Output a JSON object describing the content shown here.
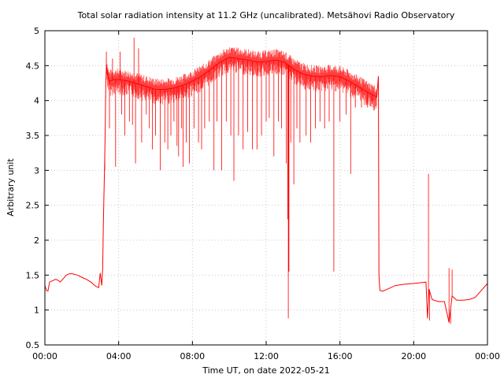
{
  "chart_data": {
    "type": "line",
    "title": "Total solar radiation intensity at 11.2 GHz (uncalibrated). Metsähovi Radio Observatory",
    "xlabel": "Time UT, on date 2022-05-21",
    "ylabel": "Arbitrary unit",
    "xlim": [
      "00:00",
      "24:00"
    ],
    "ylim": [
      0.5,
      5
    ],
    "grid": true,
    "line_color": "#ff0000",
    "xticks": [
      {
        "label": "00:00",
        "value": 0
      },
      {
        "label": "04:00",
        "value": 4
      },
      {
        "label": "08:00",
        "value": 8
      },
      {
        "label": "12:00",
        "value": 12
      },
      {
        "label": "16:00",
        "value": 16
      },
      {
        "label": "20:00",
        "value": 20
      },
      {
        "label": "00:00",
        "value": 24
      }
    ],
    "yticks": [
      {
        "label": "0.5",
        "value": 0.5
      },
      {
        "label": "1",
        "value": 1
      },
      {
        "label": "1.5",
        "value": 1.5
      },
      {
        "label": "2",
        "value": 2
      },
      {
        "label": "2.5",
        "value": 2.5
      },
      {
        "label": "3",
        "value": 3
      },
      {
        "label": "3.5",
        "value": 3.5
      },
      {
        "label": "4",
        "value": 4
      },
      {
        "label": "4.5",
        "value": 4.5
      },
      {
        "label": "5",
        "value": 5
      }
    ],
    "series": [
      {
        "points": [
          [
            "00:00",
            1.35
          ],
          [
            "00:05",
            1.28
          ],
          [
            "00:10",
            1.27
          ],
          [
            "00:15",
            1.4
          ],
          [
            "00:25",
            1.42
          ],
          [
            "00:35",
            1.44
          ],
          [
            "00:45",
            1.42
          ],
          [
            "00:50",
            1.4
          ],
          [
            "01:00",
            1.45
          ],
          [
            "01:10",
            1.5
          ],
          [
            "01:20",
            1.52
          ],
          [
            "01:30",
            1.52
          ],
          [
            "01:45",
            1.5
          ],
          [
            "02:00",
            1.47
          ],
          [
            "02:15",
            1.44
          ],
          [
            "02:30",
            1.4
          ],
          [
            "02:45",
            1.34
          ],
          [
            "02:55",
            1.32
          ],
          [
            "03:00",
            1.53
          ],
          [
            "03:05",
            1.35
          ],
          [
            "03:08",
            1.6
          ],
          [
            "03:10",
            2.2
          ],
          [
            "03:12",
            2.6
          ],
          [
            "03:14",
            3.0
          ],
          [
            "03:16",
            3.5
          ],
          [
            "03:18",
            4.2
          ],
          [
            "03:20",
            4.5
          ],
          [
            "03:25",
            4.35
          ],
          [
            "03:30",
            4.28
          ],
          [
            "03:45",
            4.3
          ],
          [
            "04:00",
            4.3
          ],
          [
            "04:30",
            4.28
          ],
          [
            "05:00",
            4.24
          ],
          [
            "05:30",
            4.2
          ],
          [
            "06:00",
            4.16
          ],
          [
            "06:30",
            4.16
          ],
          [
            "07:00",
            4.18
          ],
          [
            "07:30",
            4.22
          ],
          [
            "08:00",
            4.28
          ],
          [
            "08:30",
            4.35
          ],
          [
            "09:00",
            4.45
          ],
          [
            "09:30",
            4.55
          ],
          [
            "10:00",
            4.62
          ],
          [
            "10:30",
            4.6
          ],
          [
            "11:00",
            4.58
          ],
          [
            "11:30",
            4.55
          ],
          [
            "12:00",
            4.56
          ],
          [
            "12:30",
            4.58
          ],
          [
            "13:00",
            4.55
          ],
          [
            "13:30",
            4.45
          ],
          [
            "14:00",
            4.38
          ],
          [
            "14:30",
            4.35
          ],
          [
            "15:00",
            4.34
          ],
          [
            "15:30",
            4.36
          ],
          [
            "16:00",
            4.34
          ],
          [
            "16:30",
            4.28
          ],
          [
            "17:00",
            4.2
          ],
          [
            "17:30",
            4.12
          ],
          [
            "18:00",
            4.05
          ],
          [
            "18:05",
            4.35
          ],
          [
            "18:07",
            1.5
          ],
          [
            "18:10",
            1.28
          ],
          [
            "18:20",
            1.27
          ],
          [
            "18:40",
            1.31
          ],
          [
            "19:00",
            1.35
          ],
          [
            "19:30",
            1.37
          ],
          [
            "20:00",
            1.38
          ],
          [
            "20:20",
            1.39
          ],
          [
            "20:40",
            1.4
          ],
          [
            "20:45",
            0.88
          ],
          [
            "20:50",
            1.3
          ],
          [
            "21:00",
            1.15
          ],
          [
            "21:20",
            1.12
          ],
          [
            "21:40",
            1.12
          ],
          [
            "21:55",
            0.82
          ],
          [
            "22:05",
            1.2
          ],
          [
            "22:20",
            1.14
          ],
          [
            "22:40",
            1.14
          ],
          [
            "23:00",
            1.15
          ],
          [
            "23:20",
            1.18
          ],
          [
            "23:40",
            1.28
          ],
          [
            "24:00",
            1.38
          ]
        ]
      }
    ],
    "spikes": [
      [
        "03:15",
        3.0
      ],
      [
        "03:20",
        4.7
      ],
      [
        "03:30",
        3.6
      ],
      [
        "03:40",
        4.6
      ],
      [
        "03:50",
        3.05
      ],
      [
        "04:05",
        4.7
      ],
      [
        "04:10",
        3.8
      ],
      [
        "04:20",
        3.5
      ],
      [
        "04:35",
        3.7
      ],
      [
        "04:45",
        3.65
      ],
      [
        "04:50",
        4.9
      ],
      [
        "04:55",
        3.1
      ],
      [
        "05:05",
        4.75
      ],
      [
        "05:15",
        3.4
      ],
      [
        "05:30",
        3.8
      ],
      [
        "05:40",
        3.6
      ],
      [
        "05:50",
        3.3
      ],
      [
        "06:00",
        3.5
      ],
      [
        "06:15",
        3.0
      ],
      [
        "06:30",
        3.4
      ],
      [
        "06:40",
        3.3
      ],
      [
        "06:50",
        3.5
      ],
      [
        "07:00",
        3.7
      ],
      [
        "07:10",
        3.35
      ],
      [
        "07:15",
        3.2
      ],
      [
        "07:25",
        3.6
      ],
      [
        "07:30",
        3.05
      ],
      [
        "07:40",
        3.4
      ],
      [
        "07:50",
        3.1
      ],
      [
        "08:05",
        3.6
      ],
      [
        "08:20",
        3.4
      ],
      [
        "08:30",
        3.3
      ],
      [
        "08:40",
        3.6
      ],
      [
        "08:55",
        3.7
      ],
      [
        "09:10",
        3.0
      ],
      [
        "09:20",
        3.7
      ],
      [
        "09:35",
        3.0
      ],
      [
        "09:50",
        3.7
      ],
      [
        "10:05",
        3.5
      ],
      [
        "10:15",
        2.85
      ],
      [
        "10:30",
        3.5
      ],
      [
        "10:45",
        3.3
      ],
      [
        "11:00",
        3.55
      ],
      [
        "11:15",
        3.3
      ],
      [
        "11:30",
        3.3
      ],
      [
        "11:45",
        3.5
      ],
      [
        "12:00",
        3.7
      ],
      [
        "12:10",
        3.75
      ],
      [
        "12:25",
        3.2
      ],
      [
        "12:40",
        3.7
      ],
      [
        "12:50",
        3.6
      ],
      [
        "13:05",
        3.1
      ],
      [
        "13:10",
        2.3
      ],
      [
        "13:12",
        0.88
      ],
      [
        "13:14",
        1.55
      ],
      [
        "13:20",
        3.4
      ],
      [
        "13:30",
        2.8
      ],
      [
        "13:40",
        3.6
      ],
      [
        "13:50",
        3.4
      ],
      [
        "14:10",
        3.5
      ],
      [
        "14:25",
        3.4
      ],
      [
        "14:40",
        3.6
      ],
      [
        "14:55",
        3.7
      ],
      [
        "15:10",
        3.6
      ],
      [
        "15:25",
        3.7
      ],
      [
        "15:40",
        1.55
      ],
      [
        "16:00",
        3.7
      ],
      [
        "16:20",
        3.8
      ],
      [
        "16:35",
        2.95
      ],
      [
        "16:50",
        3.9
      ],
      [
        "17:10",
        3.9
      ],
      [
        "17:30",
        3.9
      ],
      [
        "17:45",
        3.95
      ],
      [
        "20:48",
        2.95
      ],
      [
        "20:52",
        0.85
      ],
      [
        "21:55",
        1.6
      ],
      [
        "22:00",
        0.8
      ],
      [
        "22:05",
        1.58
      ]
    ]
  }
}
